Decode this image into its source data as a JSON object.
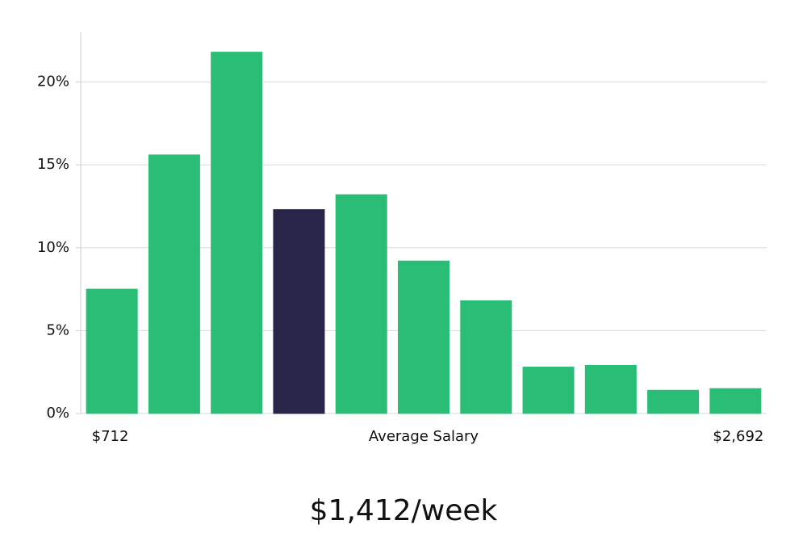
{
  "chart_data": {
    "type": "bar",
    "x_label": "Average Salary",
    "annotation": "$1,412/week",
    "categories": [
      "$712",
      null,
      null,
      null,
      null,
      null,
      null,
      null,
      null,
      null,
      "$2,692"
    ],
    "values": [
      7.5,
      15.6,
      21.8,
      12.3,
      13.2,
      9.2,
      6.8,
      2.8,
      2.9,
      1.4,
      1.5
    ],
    "colors": [
      "#2abd76",
      "#2abd76",
      "#2abd76",
      "#29254a",
      "#2abd76",
      "#2abd76",
      "#2abd76",
      "#2abd76",
      "#2abd76",
      "#2abd76",
      "#2abd76"
    ],
    "ylim": [
      0,
      23
    ],
    "yticks": [
      {
        "value": 0,
        "label": "0%"
      },
      {
        "value": 5,
        "label": "5%"
      },
      {
        "value": 10,
        "label": "10%"
      },
      {
        "value": 15,
        "label": "15%"
      },
      {
        "value": 20,
        "label": "20%"
      }
    ],
    "grid": true
  }
}
